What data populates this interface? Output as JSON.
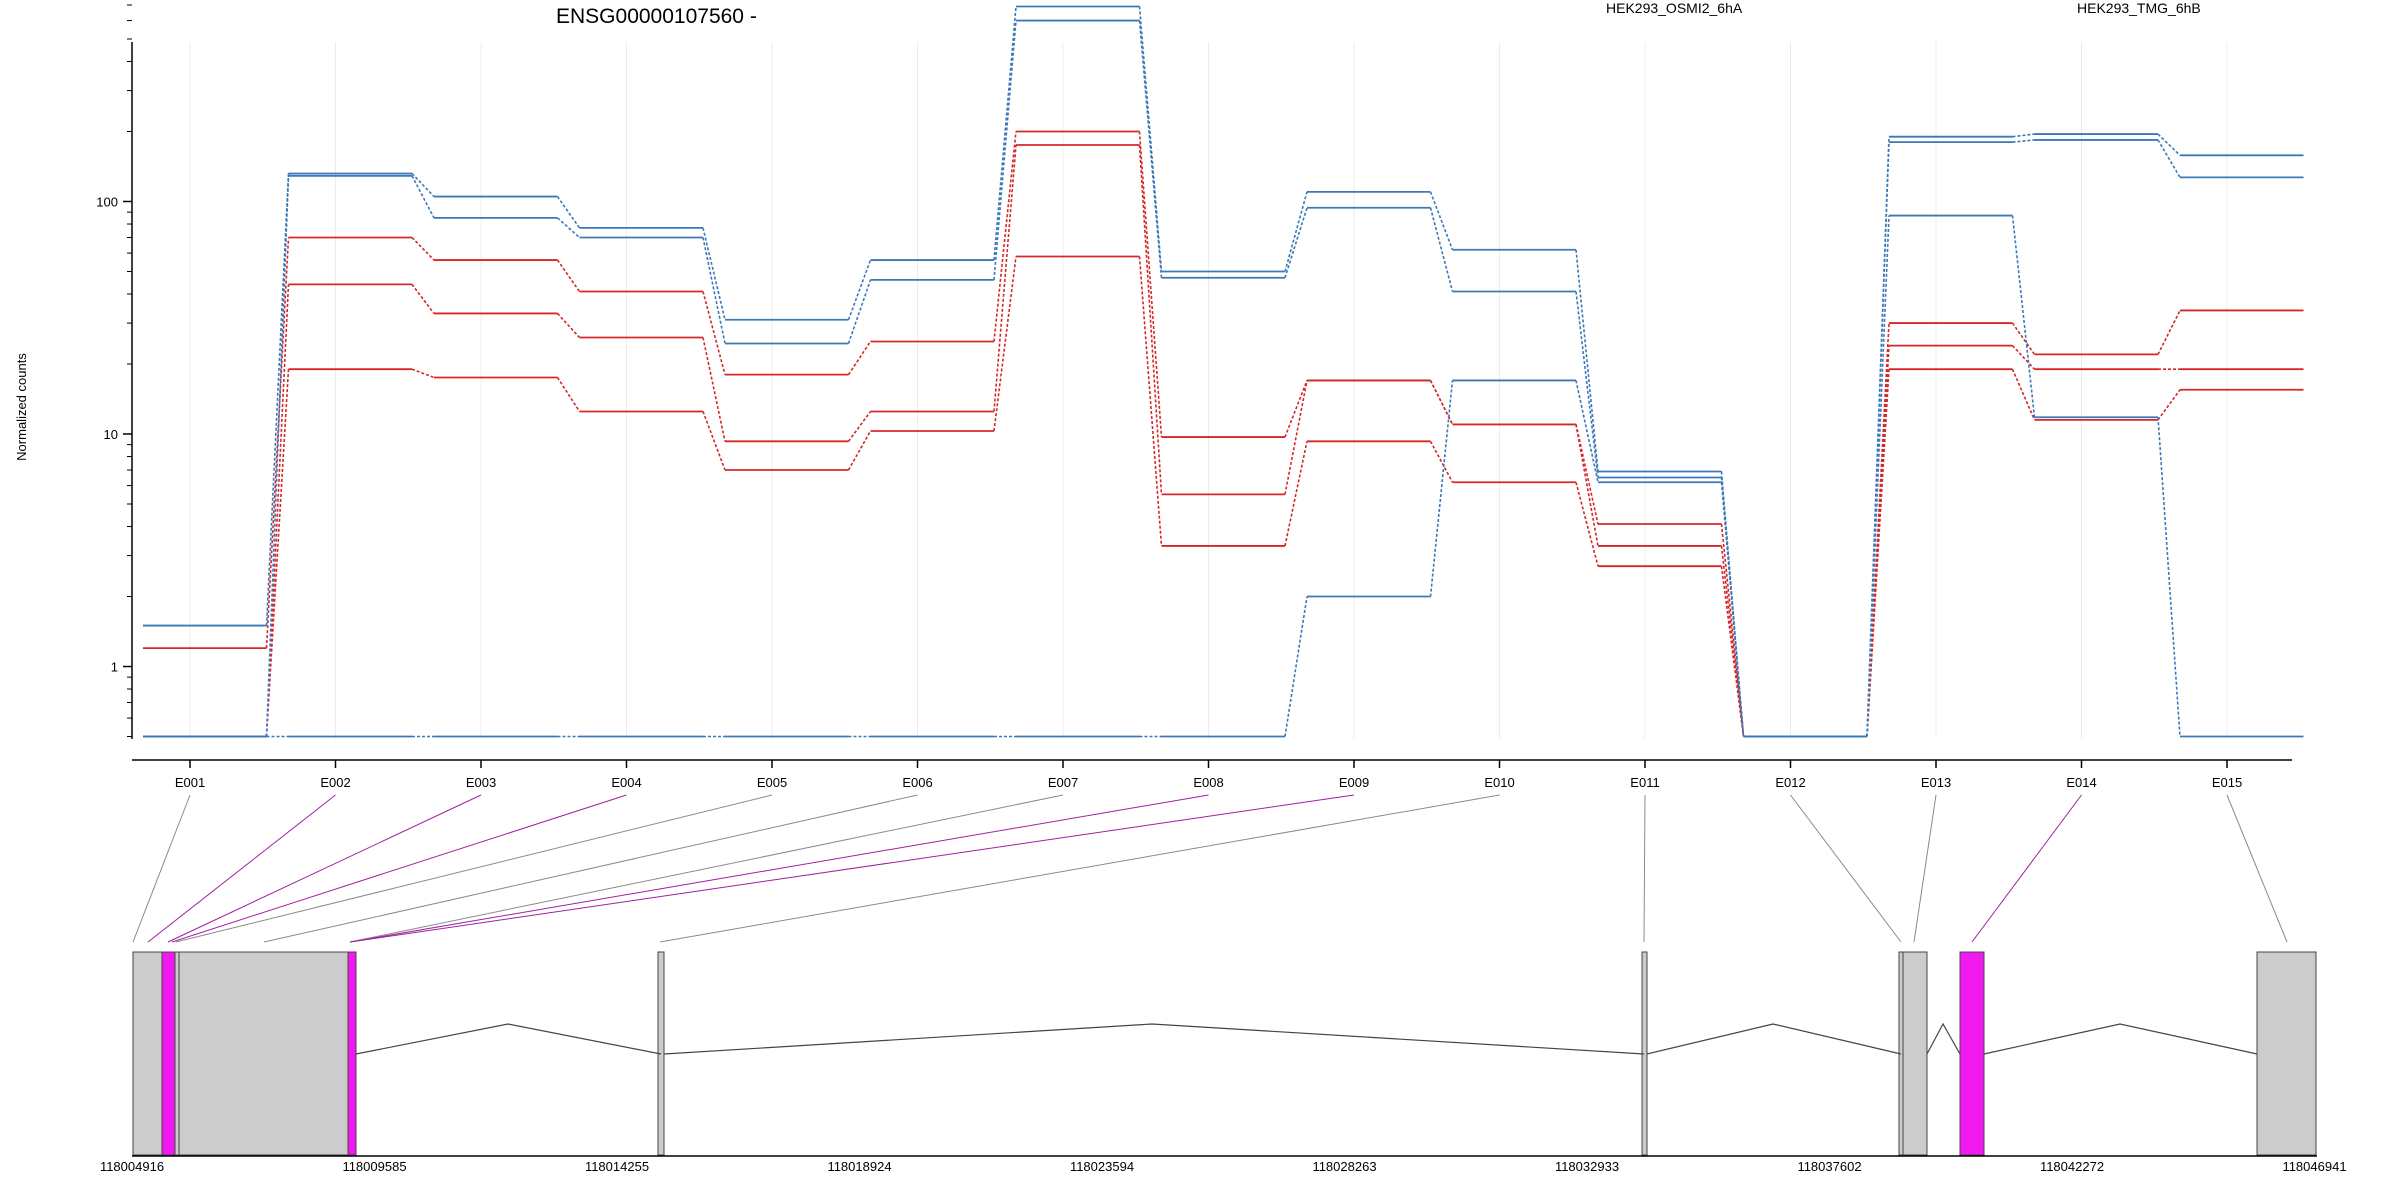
{
  "chart_data": {
    "type": "line",
    "title": "ENSG00000107560 -",
    "ylabel": "Normalized counts",
    "xlabel": "",
    "yscale": "log",
    "ylim": [
      0.5,
      800
    ],
    "yticks": [
      1,
      10,
      100
    ],
    "ytick_labels": [
      "1",
      "10",
      "100"
    ],
    "grid": "vertical",
    "legend_position": "top",
    "categories": [
      "E001",
      "E002",
      "E003",
      "E004",
      "E005",
      "E006",
      "E007",
      "E008",
      "E009",
      "E010",
      "E011",
      "E012",
      "E013",
      "E014",
      "E015"
    ],
    "series": [
      {
        "name": "HEK293_OSMI2_6hA",
        "color": "#d62728",
        "values": [
          1.2,
          70,
          56,
          41,
          18,
          25,
          200,
          9.7,
          17,
          11,
          4.1,
          0.5,
          30,
          22,
          34
        ]
      },
      {
        "name": "HEK293_OSMI2_6hA",
        "color": "#d62728",
        "values": [
          0.5,
          44,
          33,
          26,
          9.3,
          12.5,
          175,
          5.5,
          17,
          11,
          3.3,
          0.5,
          24,
          19,
          19
        ]
      },
      {
        "name": "HEK293_OSMI2_6hA",
        "color": "#d62728",
        "values": [
          0.5,
          19,
          17.5,
          12.5,
          7,
          10.3,
          58,
          3.3,
          9.3,
          6.2,
          2.7,
          0.5,
          19,
          11.5,
          15.5
        ]
      },
      {
        "name": "HEK293_TMG_6hB",
        "color": "#3a78b8",
        "values": [
          1.5,
          132,
          105,
          77,
          31,
          56,
          690,
          50,
          110,
          62,
          6.9,
          0.5,
          190,
          195,
          158
        ]
      },
      {
        "name": "HEK293_TMG_6hB",
        "color": "#3a78b8",
        "values": [
          0.5,
          129,
          85,
          70,
          24.5,
          46,
          600,
          47,
          94,
          41,
          6.5,
          0.5,
          180,
          184,
          127
        ]
      },
      {
        "name": "HEK293_TMG_6hB",
        "color": "#3a78b8",
        "values": [
          0.5,
          0.5,
          0.5,
          0.5,
          0.5,
          0.5,
          0.5,
          0.5,
          2.0,
          17,
          6.2,
          0.5,
          87,
          11.8,
          0.5
        ]
      }
    ],
    "legend": [
      {
        "label": "HEK293_OSMI2_6hA",
        "color": "#d62728"
      },
      {
        "label": "HEK293_TMG_6hB",
        "color": "#3a78b8"
      }
    ],
    "genomic_axis": {
      "tick_labels": [
        "118004916",
        "118009585",
        "118014255",
        "118018924",
        "118023594",
        "118028263",
        "118032933",
        "118037602",
        "118042272",
        "118046941"
      ]
    },
    "gene_model": {
      "exon_color": "#cccccc",
      "highlight_color": "#f019f0",
      "intron_color": "#000000",
      "highlighted_exons": [
        "E002",
        "E003",
        "E004",
        "E008",
        "E009",
        "E014"
      ]
    }
  }
}
